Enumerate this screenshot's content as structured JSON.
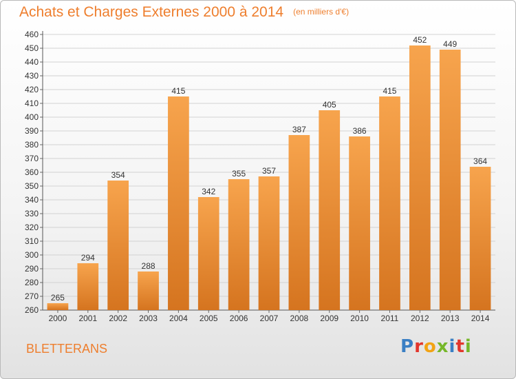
{
  "header": {
    "title": "Achats et Charges Externes 2000 à 2014",
    "unit_note": "(en milliers d'€)"
  },
  "footer": {
    "location": "BLETTERANS",
    "logo_text": "Proxiti",
    "logo_colors": [
      "#3a7fc4",
      "#e2362c",
      "#f2a314",
      "#76b72a",
      "#3a7fc4",
      "#e2362c",
      "#76b72a"
    ]
  },
  "colors": {
    "bar_light": "#f7a44d",
    "bar_dark": "#d5741f",
    "accent_text": "#ee7e2d",
    "grid": "#d2d2d2"
  },
  "chart_data": {
    "type": "bar",
    "title": "Achats et Charges Externes 2000 à 2014",
    "subtitle": "(en milliers d'€)",
    "categories": [
      "2000",
      "2001",
      "2002",
      "2003",
      "2004",
      "2005",
      "2006",
      "2007",
      "2008",
      "2009",
      "2010",
      "2011",
      "2012",
      "2013",
      "2014"
    ],
    "values": [
      265,
      294,
      354,
      288,
      415,
      342,
      355,
      357,
      387,
      405,
      386,
      415,
      452,
      449,
      364
    ],
    "ylim": [
      260,
      460
    ],
    "ytick_step": 10,
    "grid": true,
    "data_labels": true
  }
}
